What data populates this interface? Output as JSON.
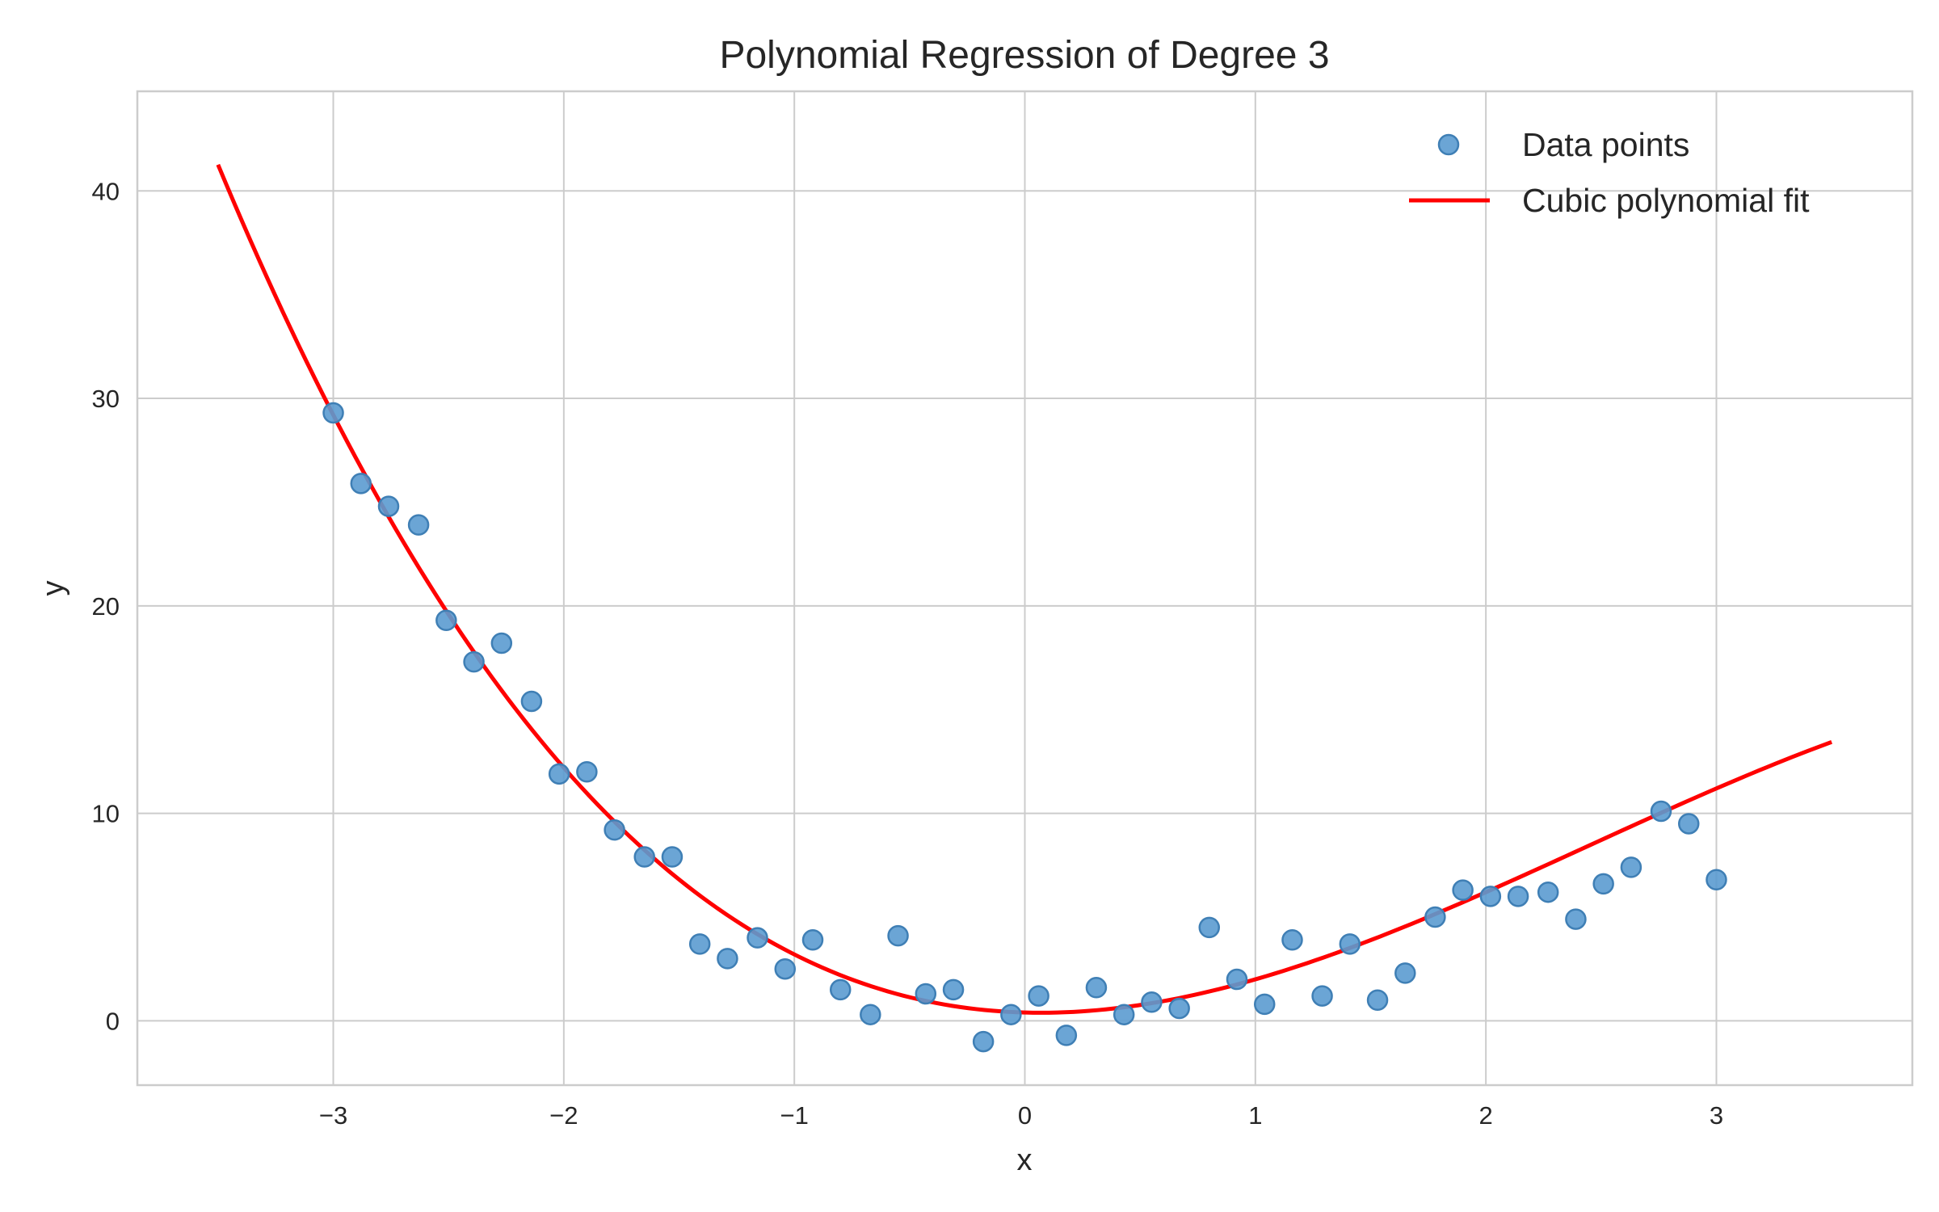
{
  "chart_data": {
    "type": "scatter",
    "title": "Polynomial Regression of Degree 3",
    "xlabel": "x",
    "ylabel": "y",
    "xlim": [
      -3.85,
      3.85
    ],
    "ylim": [
      -3.1,
      44.8
    ],
    "grid": true,
    "legend_position": "top-right",
    "x_ticks": [
      -3,
      -2,
      -1,
      0,
      1,
      2,
      3
    ],
    "x_tick_labels": [
      "−3",
      "−2",
      "−1",
      "0",
      "1",
      "2",
      "3"
    ],
    "y_ticks": [
      0,
      10,
      20,
      30,
      40
    ],
    "y_tick_labels": [
      "0",
      "10",
      "20",
      "30",
      "40"
    ],
    "series": [
      {
        "name": "Data points",
        "kind": "scatter",
        "color": "#5b9bd0",
        "points": [
          [
            -3.0,
            29.3
          ],
          [
            -2.88,
            25.9
          ],
          [
            -2.76,
            24.8
          ],
          [
            -2.63,
            23.9
          ],
          [
            -2.51,
            19.3
          ],
          [
            -2.39,
            17.3
          ],
          [
            -2.27,
            18.2
          ],
          [
            -2.14,
            15.4
          ],
          [
            -2.02,
            11.9
          ],
          [
            -1.9,
            12.0
          ],
          [
            -1.78,
            9.2
          ],
          [
            -1.65,
            7.9
          ],
          [
            -1.53,
            7.9
          ],
          [
            -1.41,
            3.7
          ],
          [
            -1.29,
            3.0
          ],
          [
            -1.16,
            4.0
          ],
          [
            -1.04,
            2.5
          ],
          [
            -0.92,
            3.9
          ],
          [
            -0.8,
            1.5
          ],
          [
            -0.67,
            0.3
          ],
          [
            -0.55,
            4.1
          ],
          [
            -0.43,
            1.3
          ],
          [
            -0.31,
            1.5
          ],
          [
            -0.18,
            -1.0
          ],
          [
            -0.06,
            0.3
          ],
          [
            0.06,
            1.2
          ],
          [
            0.18,
            -0.7
          ],
          [
            0.31,
            1.6
          ],
          [
            0.43,
            0.3
          ],
          [
            0.55,
            0.9
          ],
          [
            0.67,
            0.6
          ],
          [
            0.8,
            4.5
          ],
          [
            0.92,
            2.0
          ],
          [
            1.04,
            0.8
          ],
          [
            1.16,
            3.9
          ],
          [
            1.29,
            1.2
          ],
          [
            1.41,
            3.7
          ],
          [
            1.53,
            1.0
          ],
          [
            1.65,
            2.3
          ],
          [
            1.78,
            5.0
          ],
          [
            1.9,
            6.3
          ],
          [
            2.02,
            6.0
          ],
          [
            2.14,
            6.0
          ],
          [
            2.27,
            6.2
          ],
          [
            2.39,
            4.9
          ],
          [
            2.51,
            6.6
          ],
          [
            2.63,
            7.4
          ],
          [
            2.76,
            10.1
          ],
          [
            2.88,
            9.5
          ],
          [
            3.0,
            6.8
          ]
        ]
      },
      {
        "name": "Cubic polynomial fit",
        "kind": "line",
        "color": "#ff0000",
        "coefficients": {
          "a": -0.3,
          "b": 2.2,
          "c": -0.3,
          "d": 0.4
        },
        "x_range": [
          -3.5,
          3.5
        ]
      }
    ]
  }
}
